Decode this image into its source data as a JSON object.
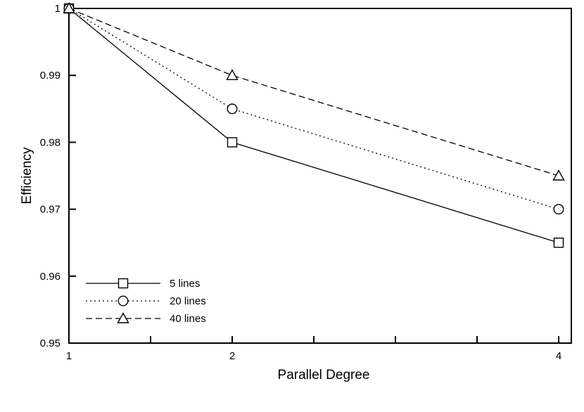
{
  "chart_data": {
    "type": "line",
    "title": "",
    "xlabel": "Parallel Degree",
    "ylabel": "Efficiency",
    "x": [
      1,
      2,
      4
    ],
    "xlim": [
      1,
      4
    ],
    "ylim": [
      0.95,
      1.0
    ],
    "x_ticks": [
      "1",
      "2",
      "4"
    ],
    "y_ticks": [
      "0.95",
      "0.96",
      "0.97",
      "0.98",
      "0.99",
      "1"
    ],
    "y_tick_values": [
      0.95,
      0.96,
      0.97,
      0.98,
      0.99,
      1.0
    ],
    "grid": false,
    "legend_position": "bottom-left",
    "series": [
      {
        "name": "5 lines",
        "values": [
          1.0,
          0.98,
          0.965
        ],
        "line_style": "solid",
        "marker": "square",
        "color": "#000000"
      },
      {
        "name": "20 lines",
        "values": [
          1.0,
          0.985,
          0.97
        ],
        "line_style": "dotted",
        "marker": "circle",
        "color": "#000000"
      },
      {
        "name": "40 lines",
        "values": [
          1.0,
          0.99,
          0.975
        ],
        "line_style": "dashed",
        "marker": "triangle",
        "color": "#000000"
      }
    ]
  }
}
